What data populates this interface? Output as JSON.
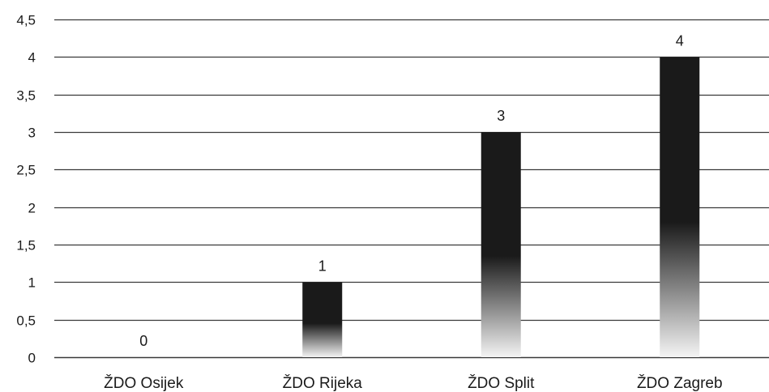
{
  "chart_data": {
    "type": "bar",
    "categories": [
      "ŽDO Osijek",
      "ŽDO Rijeka",
      "ŽDO Split",
      "ŽDO Zagreb"
    ],
    "values": [
      0,
      1,
      3,
      4
    ],
    "data_labels": [
      "0",
      "1",
      "3",
      "4"
    ],
    "ylim": [
      0,
      4.5
    ],
    "yticks": [
      0,
      0.5,
      1,
      1.5,
      2,
      2.5,
      3,
      3.5,
      4,
      4.5
    ],
    "ytick_labels": [
      "0",
      "0,5",
      "1",
      "1,5",
      "2",
      "2,5",
      "3",
      "3,5",
      "4",
      "4,5"
    ],
    "grid": true,
    "legend": "none",
    "colors": {
      "bar_top": "#1a1a1a",
      "bar_bottom": "#f4f4f4",
      "grid": "#3a3a3a"
    }
  }
}
